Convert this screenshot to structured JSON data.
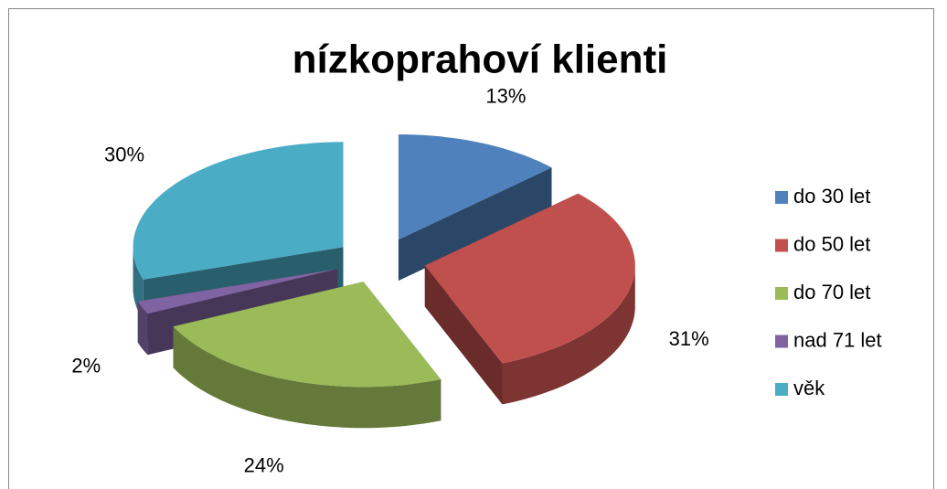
{
  "chart_data": {
    "type": "pie",
    "title": "nízkoprahoví klienti",
    "categories": [
      "do 30 let",
      "do 50 let",
      "do 70 let",
      "nad 71 let",
      "věk"
    ],
    "values": [
      13,
      31,
      24,
      2,
      30
    ],
    "value_labels": [
      "13%",
      "31%",
      "24%",
      "2%",
      "30%"
    ],
    "colors": [
      "#4f81bd",
      "#c0504d",
      "#9bbb59",
      "#8064a2",
      "#4bacc6"
    ],
    "legend": "right"
  }
}
